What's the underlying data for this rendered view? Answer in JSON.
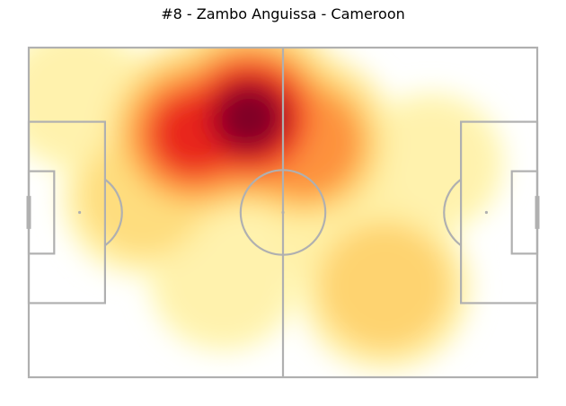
{
  "chart_data": {
    "type": "heatmap",
    "title": "#8 - Zambo Anguissa - Cameroon",
    "xlabel": "",
    "ylabel": "",
    "xlim": [
      0,
      120
    ],
    "ylim": [
      0,
      80
    ],
    "colormap": "YlOrRd",
    "pitch_line_color": "#b0b0b0",
    "hotspots": [
      {
        "x": 52,
        "y": 17,
        "intensity": 1.0
      },
      {
        "x": 39,
        "y": 21,
        "intensity": 0.85
      },
      {
        "x": 65,
        "y": 23,
        "intensity": 0.75
      },
      {
        "x": 84,
        "y": 58,
        "intensity": 0.6
      },
      {
        "x": 27,
        "y": 36,
        "intensity": 0.5
      },
      {
        "x": 11,
        "y": 12,
        "intensity": 0.35
      },
      {
        "x": 73,
        "y": 42,
        "intensity": 0.4
      },
      {
        "x": 95,
        "y": 28,
        "intensity": 0.3
      },
      {
        "x": 46,
        "y": 56,
        "intensity": 0.35
      }
    ]
  }
}
